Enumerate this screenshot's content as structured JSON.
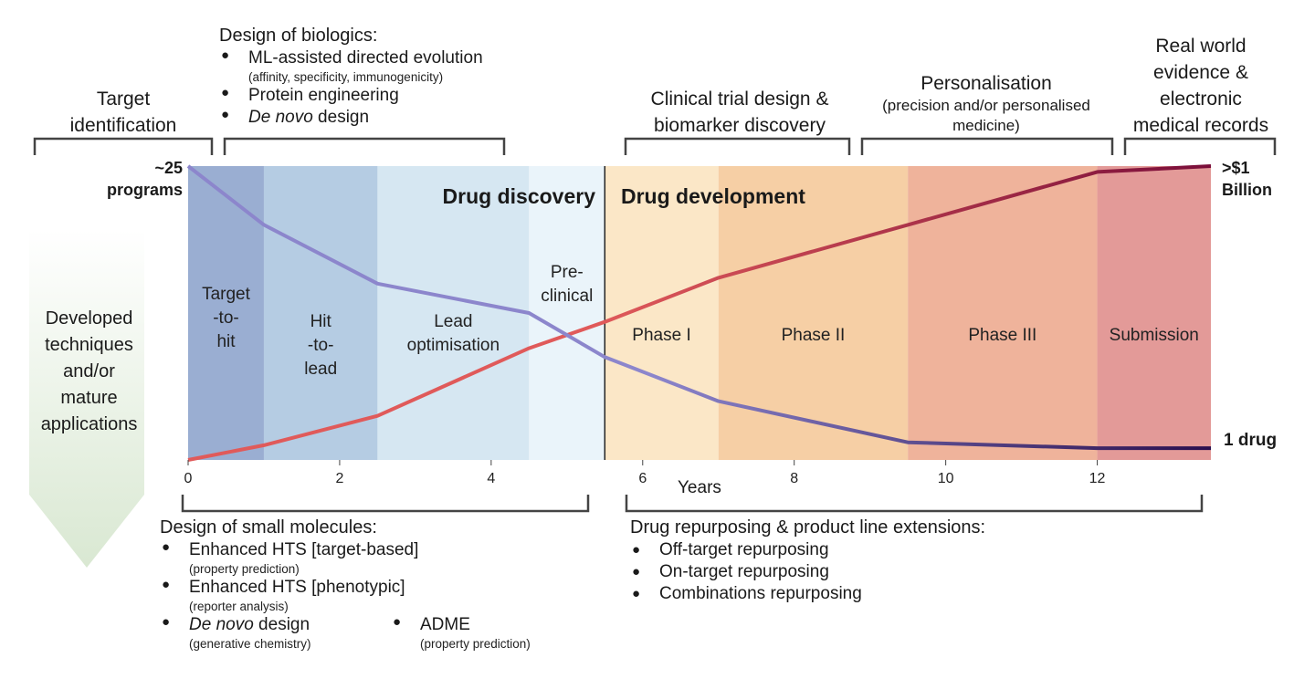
{
  "top": {
    "target_identification": "Target\nidentification",
    "biologics": {
      "title": "Design of biologics:",
      "items": [
        {
          "main": "ML-assisted directed evolution",
          "sub": "(affinity, specificity, immunogenicity)"
        },
        {
          "main": "Protein engineering",
          "sub": ""
        },
        {
          "main_italic": "De novo",
          "main": " design",
          "sub": ""
        }
      ]
    },
    "clinical": "Clinical trial design &\nbiomarker discovery",
    "personalisation": {
      "title": "Personalisation",
      "sub": "(precision and/or personalised\nmedicine)"
    },
    "rwe": "Real world\nevidence &\nelectronic\nmedical records"
  },
  "left_arrow_label": "Developed\ntechniques\nand/or\nmature\napplications",
  "bottom": {
    "small_molecules": {
      "title": "Design of small molecules:",
      "items": [
        {
          "main": "Enhanced HTS [target-based]",
          "sub": "(property prediction)"
        },
        {
          "main": "Enhanced HTS [phenotypic]",
          "sub": "(reporter analysis)"
        },
        {
          "main_italic": "De novo",
          "main": " design",
          "sub": "(generative chemistry)"
        },
        {
          "main": "ADME",
          "sub": "(property prediction)"
        }
      ]
    },
    "repurposing": {
      "title": "Drug repurposing & product line extensions:",
      "items": [
        "Off-target repurposing",
        "On-target repurposing",
        "Combinations repurposing"
      ]
    }
  },
  "chart_data": {
    "type": "line",
    "xlabel": "Years",
    "xlim": [
      0,
      13.5
    ],
    "x_ticks": [
      0,
      2,
      4,
      6,
      8,
      10,
      12
    ],
    "ylim": [
      0,
      1
    ],
    "headers": {
      "discovery": "Drug discovery",
      "development": "Drug development"
    },
    "divider_x": 5.5,
    "left_labels": {
      "top": "~25\nprograms"
    },
    "right_labels": {
      "top": ">$1\nBillion",
      "bottom": "1 drug"
    },
    "phases": [
      {
        "name": "Target\n-to-\nhit",
        "start": 0,
        "end": 1,
        "color": "#9aaed2"
      },
      {
        "name": "Hit\n-to-\nlead",
        "start": 1,
        "end": 2.5,
        "color": "#b5cce3"
      },
      {
        "name": "Lead\noptimisation",
        "start": 2.5,
        "end": 4.5,
        "color": "#d6e7f2"
      },
      {
        "name": "Pre-\nclinical",
        "start": 4.5,
        "end": 5.5,
        "color": "#eaf4fa"
      },
      {
        "name": "Phase I",
        "start": 5.5,
        "end": 7,
        "color": "#fbe7c7"
      },
      {
        "name": "Phase II",
        "start": 7,
        "end": 9.5,
        "color": "#f6cfa5"
      },
      {
        "name": "Phase III",
        "start": 9.5,
        "end": 12,
        "color": "#efb39b"
      },
      {
        "name": "Submission",
        "start": 12,
        "end": 13.5,
        "color": "#e39a98"
      }
    ],
    "series": [
      {
        "key": "programs",
        "color_start": "#8c86cc",
        "color_end": "#2a0f4e",
        "x": [
          0,
          1,
          2.5,
          4.5,
          5.5,
          7,
          9.5,
          12,
          13.5
        ],
        "y": [
          1.0,
          0.8,
          0.6,
          0.5,
          0.35,
          0.2,
          0.06,
          0.04,
          0.04
        ]
      },
      {
        "key": "cost",
        "color_start": "#e05a5a",
        "color_end": "#7a0e3a",
        "x": [
          0,
          1,
          2.5,
          4.5,
          5.5,
          7,
          9.5,
          12,
          13.5
        ],
        "y": [
          0.0,
          0.05,
          0.15,
          0.38,
          0.47,
          0.62,
          0.8,
          0.98,
          1.0
        ]
      }
    ]
  },
  "colors": {
    "arrow_top": "#ffffff",
    "arrow_bottom": "#dbe8d4",
    "bracket": "#444444"
  }
}
